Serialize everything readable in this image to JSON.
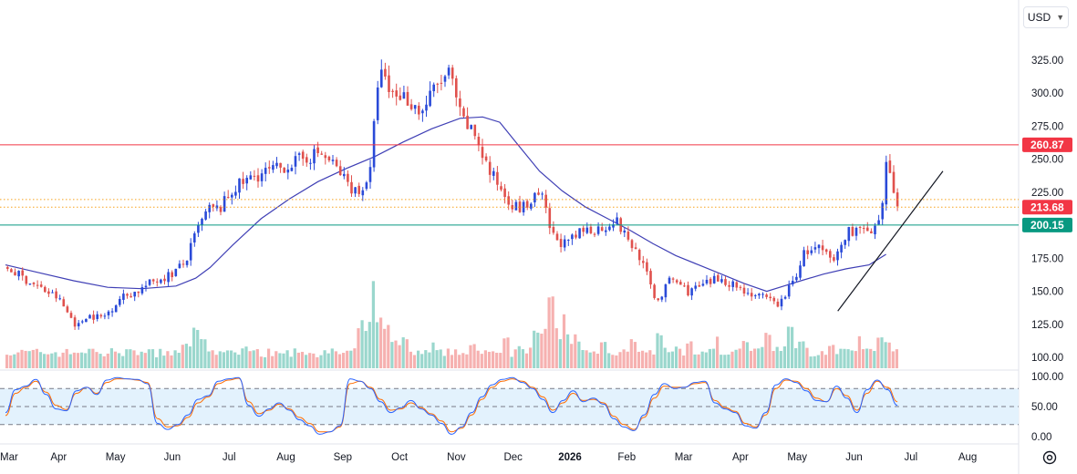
{
  "currency": {
    "label": "USD",
    "chevron_icon": "chevron-down-icon"
  },
  "settings": {
    "icon": "gear-icon"
  },
  "colors": {
    "up": "#2a4ad8",
    "down": "#e0514d",
    "ma": "#3f3fb5",
    "resistance": "#f23645",
    "support": "#089981",
    "trendline": "#131722",
    "dotted": "#f7a21b",
    "stoch_k": "#2962ff",
    "stoch_d": "#ff6d00",
    "stoch_band": "#e3f2fd"
  },
  "chart_data": [
    {
      "type": "candlestick",
      "title": "",
      "ylim": [
        92,
        350
      ],
      "y_ticks": [
        "325.00",
        "300.00",
        "275.00",
        "250.00",
        "225.00",
        "200.00",
        "175.00",
        "150.00",
        "125.00",
        "100.00"
      ],
      "x_ticks": [
        "Mar",
        "Apr",
        "May",
        "Jun",
        "Jul",
        "Aug",
        "Sep",
        "Oct",
        "Nov",
        "Dec",
        "2026",
        "Feb",
        "Mar",
        "Apr",
        "May",
        "Jun",
        "Jul",
        "Aug"
      ],
      "x_ticks_bold": [
        "2026"
      ],
      "price_lines": [
        {
          "label": "260.87",
          "value": 260.87,
          "style": "solid",
          "color": "#f23645"
        },
        {
          "label": "200.15",
          "value": 200.15,
          "style": "solid",
          "color": "#089981"
        },
        {
          "label": "213.68",
          "value": 213.68,
          "style": "tag-only",
          "color": "#f23645"
        },
        {
          "label": "",
          "value": 219.5,
          "style": "dotted",
          "color": "#f7a21b"
        },
        {
          "label": "",
          "value": 213.68,
          "style": "dotted",
          "color": "#f7a21b"
        }
      ],
      "trendline": {
        "from": {
          "x": 14.65,
          "y": 135
        },
        "to": {
          "x": 16.5,
          "y": 241
        }
      },
      "closes": [
        [
          0,
          168
        ],
        [
          0.3,
          160
        ],
        [
          0.6,
          152
        ],
        [
          0.9,
          145
        ],
        [
          1.1,
          132
        ],
        [
          1.25,
          123
        ],
        [
          1.4,
          132
        ],
        [
          1.7,
          130
        ],
        [
          2.0,
          145
        ],
        [
          2.3,
          150
        ],
        [
          2.6,
          158
        ],
        [
          2.9,
          163
        ],
        [
          3.15,
          172
        ],
        [
          3.35,
          196
        ],
        [
          3.55,
          212
        ],
        [
          3.75,
          212
        ],
        [
          4.0,
          228
        ],
        [
          4.4,
          238
        ],
        [
          4.8,
          243
        ],
        [
          5.2,
          250
        ],
        [
          5.5,
          255
        ],
        [
          5.75,
          246
        ],
        [
          6.0,
          232
        ],
        [
          6.2,
          224
        ],
        [
          6.4,
          240
        ],
        [
          6.55,
          318
        ],
        [
          6.75,
          300
        ],
        [
          7.0,
          298
        ],
        [
          7.3,
          285
        ],
        [
          7.55,
          305
        ],
        [
          7.8,
          315
        ],
        [
          8.0,
          280
        ],
        [
          8.25,
          268
        ],
        [
          8.5,
          240
        ],
        [
          8.8,
          222
        ],
        [
          9.0,
          212
        ],
        [
          9.2,
          216
        ],
        [
          9.4,
          224
        ],
        [
          9.6,
          192
        ],
        [
          9.85,
          185
        ],
        [
          10.15,
          196
        ],
        [
          10.5,
          198
        ],
        [
          10.7,
          205
        ],
        [
          10.95,
          188
        ],
        [
          11.15,
          176
        ],
        [
          11.3,
          158
        ],
        [
          11.45,
          142
        ],
        [
          11.7,
          160
        ],
        [
          12.0,
          150
        ],
        [
          12.3,
          155
        ],
        [
          12.55,
          160
        ],
        [
          12.8,
          155
        ],
        [
          13.0,
          150
        ],
        [
          13.3,
          145
        ],
        [
          13.6,
          140
        ],
        [
          13.85,
          158
        ],
        [
          14.05,
          180
        ],
        [
          14.3,
          182
        ],
        [
          14.55,
          172
        ],
        [
          14.8,
          195
        ],
        [
          15.0,
          198
        ],
        [
          15.2,
          192
        ],
        [
          15.4,
          202
        ],
        [
          15.45,
          245
        ],
        [
          15.55,
          240
        ],
        [
          15.7,
          212
        ]
      ],
      "moving_average": [
        [
          0,
          170
        ],
        [
          0.6,
          164
        ],
        [
          1.2,
          158
        ],
        [
          1.8,
          153
        ],
        [
          2.4,
          152
        ],
        [
          3.0,
          154
        ],
        [
          3.35,
          160
        ],
        [
          3.6,
          168
        ],
        [
          4.0,
          185
        ],
        [
          4.5,
          205
        ],
        [
          5.0,
          220
        ],
        [
          5.5,
          233
        ],
        [
          6.0,
          243
        ],
        [
          6.5,
          252
        ],
        [
          7.0,
          263
        ],
        [
          7.5,
          273
        ],
        [
          8.0,
          281
        ],
        [
          8.4,
          282
        ],
        [
          8.7,
          278
        ],
        [
          9.0,
          262
        ],
        [
          9.4,
          241
        ],
        [
          9.8,
          226
        ],
        [
          10.2,
          214
        ],
        [
          10.6,
          205
        ],
        [
          11.0,
          196
        ],
        [
          11.4,
          186
        ],
        [
          11.8,
          177
        ],
        [
          12.2,
          170
        ],
        [
          12.6,
          163
        ],
        [
          13.0,
          156
        ],
        [
          13.4,
          150
        ],
        [
          13.7,
          154
        ],
        [
          14.0,
          158
        ],
        [
          14.4,
          163
        ],
        [
          14.8,
          167
        ],
        [
          15.2,
          170
        ],
        [
          15.5,
          178
        ]
      ]
    },
    {
      "type": "histogram",
      "title": "",
      "series_name": "",
      "note": "volume bars, height relative to 1.0 = tallest bar",
      "peaks": [
        [
          0.0,
          0.15
        ],
        [
          0.6,
          0.16
        ],
        [
          1.2,
          0.18
        ],
        [
          1.5,
          0.22
        ],
        [
          2.5,
          0.18
        ],
        [
          3.1,
          0.18
        ],
        [
          3.3,
          0.45
        ],
        [
          3.45,
          0.32
        ],
        [
          4.2,
          0.24
        ],
        [
          5.2,
          0.18
        ],
        [
          6.2,
          0.2
        ],
        [
          6.45,
          1.0
        ],
        [
          6.55,
          0.55
        ],
        [
          6.7,
          0.48
        ],
        [
          7.0,
          0.35
        ],
        [
          7.5,
          0.3
        ],
        [
          8.2,
          0.28
        ],
        [
          8.8,
          0.35
        ],
        [
          9.3,
          0.42
        ],
        [
          9.6,
          0.8
        ],
        [
          9.8,
          0.6
        ],
        [
          10.0,
          0.4
        ],
        [
          10.5,
          0.3
        ],
        [
          11.0,
          0.32
        ],
        [
          11.5,
          0.4
        ],
        [
          12.0,
          0.3
        ],
        [
          12.5,
          0.36
        ],
        [
          13.0,
          0.3
        ],
        [
          13.4,
          0.4
        ],
        [
          13.8,
          0.48
        ],
        [
          14.0,
          0.3
        ],
        [
          14.5,
          0.26
        ],
        [
          15.0,
          0.36
        ],
        [
          15.35,
          0.36
        ],
        [
          15.5,
          0.3
        ]
      ]
    },
    {
      "type": "line",
      "title": "",
      "ylim": [
        -8,
        108
      ],
      "y_ticks": [
        "100.00",
        "50.00",
        "0.00"
      ],
      "band": [
        20,
        80
      ],
      "levels": [
        80,
        50,
        20
      ],
      "series": [
        {
          "name": "",
          "color": "#2962ff",
          "role": "k"
        },
        {
          "name": "",
          "color": "#ff6d00",
          "role": "d"
        }
      ],
      "values_k": [
        40,
        78,
        84,
        95,
        70,
        46,
        43,
        76,
        82,
        70,
        94,
        98,
        96,
        95,
        88,
        22,
        12,
        20,
        36,
        62,
        68,
        92,
        96,
        98,
        52,
        34,
        46,
        56,
        44,
        28,
        18,
        4,
        8,
        18,
        96,
        92,
        80,
        58,
        40,
        48,
        60,
        46,
        36,
        22,
        4,
        16,
        40,
        66,
        86,
        95,
        98,
        90,
        80,
        62,
        40,
        60,
        76,
        58,
        64,
        54,
        30,
        16,
        10,
        36,
        70,
        88,
        80,
        82,
        90,
        92,
        56,
        46,
        40,
        18,
        14,
        40,
        86,
        96,
        90,
        76,
        60,
        58,
        84,
        64,
        40,
        78,
        94,
        78,
        52
      ],
      "values_d": [
        35,
        72,
        82,
        92,
        74,
        52,
        45,
        72,
        82,
        72,
        90,
        96,
        96,
        94,
        90,
        30,
        16,
        18,
        32,
        56,
        66,
        88,
        94,
        97,
        58,
        38,
        44,
        54,
        46,
        32,
        22,
        8,
        8,
        16,
        88,
        92,
        82,
        62,
        44,
        46,
        56,
        48,
        38,
        26,
        8,
        14,
        36,
        62,
        82,
        92,
        96,
        92,
        82,
        66,
        44,
        56,
        72,
        60,
        62,
        56,
        34,
        20,
        12,
        32,
        64,
        84,
        82,
        82,
        88,
        90,
        60,
        48,
        42,
        22,
        16,
        36,
        80,
        94,
        92,
        80,
        64,
        58,
        80,
        68,
        44,
        72,
        92,
        82,
        58
      ]
    }
  ]
}
